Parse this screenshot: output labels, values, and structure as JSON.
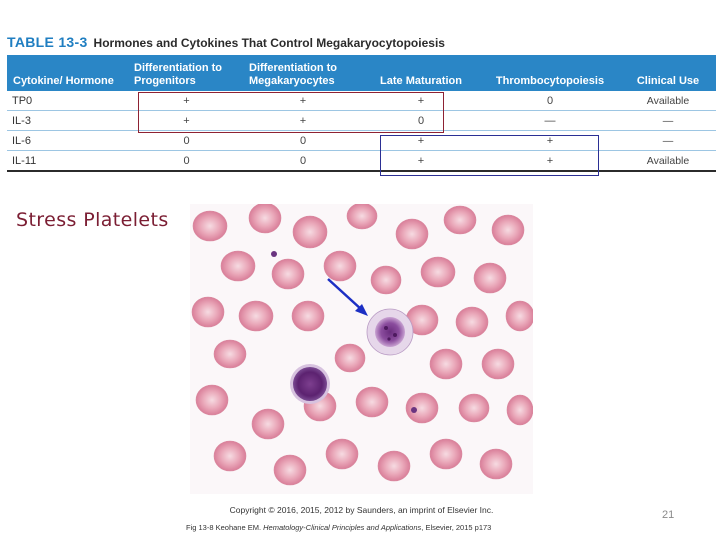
{
  "table": {
    "number": "TABLE 13-3",
    "title": "Hormones and Cytokines That Control Megakaryocytopoiesis",
    "columns": [
      "Cytokine/ Hormone",
      "Differentiation to Progenitors",
      "Differentiation to Megakaryocytes",
      "Late Maturation",
      "Thrombocytopoiesis",
      "Clinical Use"
    ],
    "rows": [
      [
        "TP0",
        "+",
        "+",
        "+",
        "0",
        "Available"
      ],
      [
        "IL-3",
        "+",
        "+",
        "0",
        "—",
        "—"
      ],
      [
        "IL-6",
        "0",
        "0",
        "+",
        "+",
        "—"
      ],
      [
        "IL-11",
        "0",
        "0",
        "+",
        "+",
        "Available"
      ]
    ]
  },
  "label": "Stress Platelets",
  "figure": {
    "copyright": "Copyright © 2016, 2015, 2012 by Saunders, an imprint of Elsevier Inc.",
    "citation_prefix": "Fig 13-8 Keohane EM. ",
    "citation_title": "Hematology-Clinical Principles and Applications",
    "citation_suffix": ", Elsevier, 2015 p173"
  },
  "page_number": "21",
  "colors": {
    "header_blue": "#2a86c6",
    "caption_blue": "#1f7ec1",
    "highlight_red": "#8e2233",
    "highlight_blue": "#2b2f94",
    "label_maroon": "#7b1e33",
    "arrow_blue": "#1c2fc4"
  }
}
